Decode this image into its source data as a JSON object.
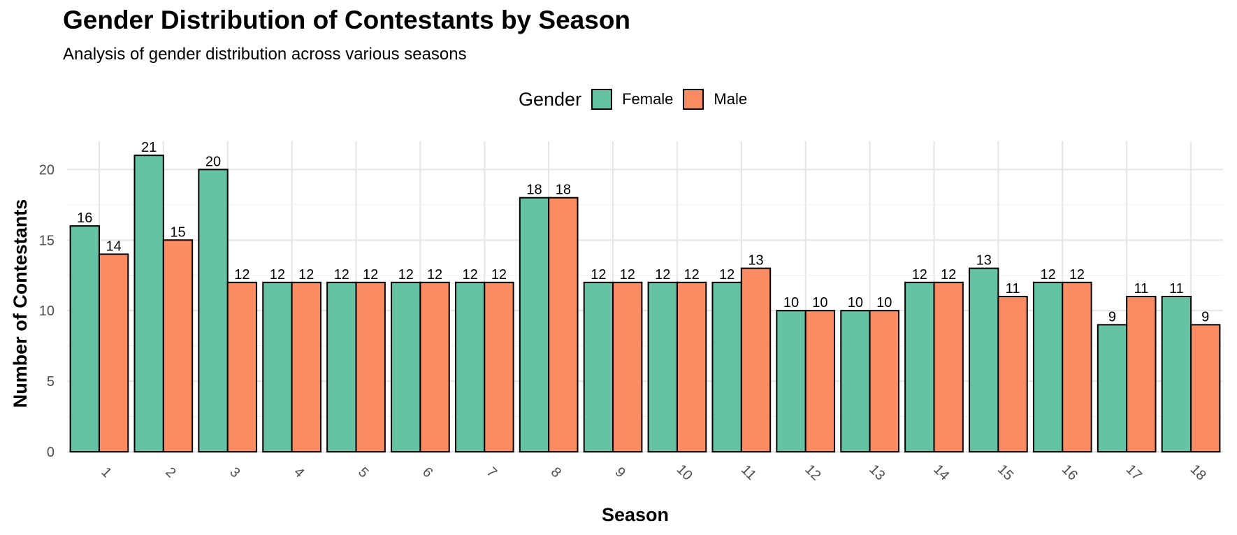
{
  "chart_data": {
    "type": "bar",
    "title": "Gender Distribution of Contestants by Season",
    "subtitle": "Analysis of gender distribution across various seasons",
    "xlabel": "Season",
    "ylabel": "Number of Contestants",
    "categories": [
      "1",
      "2",
      "3",
      "4",
      "5",
      "6",
      "7",
      "8",
      "9",
      "10",
      "11",
      "12",
      "13",
      "14",
      "15",
      "16",
      "17",
      "18"
    ],
    "series": [
      {
        "name": "Female",
        "color": "#66c2a5",
        "values": [
          16,
          21,
          20,
          12,
          12,
          12,
          12,
          18,
          12,
          12,
          12,
          10,
          10,
          12,
          13,
          12,
          9,
          11
        ]
      },
      {
        "name": "Male",
        "color": "#fc8d62",
        "values": [
          14,
          15,
          12,
          12,
          12,
          12,
          12,
          18,
          12,
          12,
          13,
          10,
          10,
          12,
          11,
          12,
          11,
          9
        ]
      }
    ],
    "legend": {
      "title": "Gender",
      "position": "top"
    },
    "ylim": [
      0,
      22
    ],
    "yticks": [
      0,
      5,
      10,
      15,
      20
    ],
    "grid": true,
    "data_labels": true,
    "x_tick_rotation": -45
  }
}
